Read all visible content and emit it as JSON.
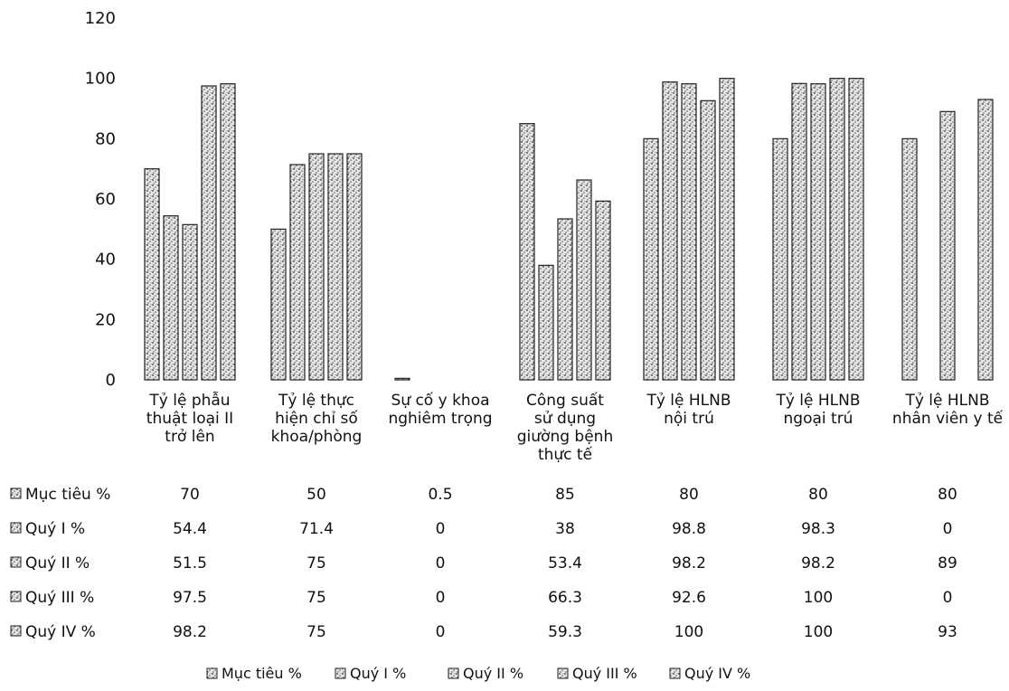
{
  "chart_data": {
    "type": "bar",
    "ylim": [
      0,
      120
    ],
    "yticks": [
      "0",
      "20",
      "40",
      "60",
      "80",
      "100",
      "120"
    ],
    "grid": false,
    "legend_position": "bottom",
    "categories": [
      [
        "Tỷ lệ phẫu",
        "thuật loại II",
        "trở lên"
      ],
      [
        "Tỷ lệ thực",
        "hiện chỉ số",
        "khoa/phòng"
      ],
      [
        "Sự cố y khoa",
        "nghiêm trọng"
      ],
      [
        "Công suất",
        "sử dụng",
        "giường bệnh",
        "thực tế"
      ],
      [
        "Tỷ lệ HLNB",
        "nội trú"
      ],
      [
        "Tỷ lệ HLNB",
        "ngoại trú"
      ],
      [
        "Tỷ lệ HLNB",
        "nhân viên y tế"
      ]
    ],
    "series": [
      {
        "name": "Mục tiêu %",
        "legend_label": "Mục tiêu %",
        "values": [
          70,
          50,
          0.5,
          85,
          80,
          80,
          80
        ],
        "labels": [
          "70",
          "50",
          "0.5",
          "85",
          "80",
          "80",
          "80"
        ]
      },
      {
        "name": "Quý I %",
        "legend_label": "Quý I %",
        "values": [
          54.4,
          71.4,
          0,
          38,
          98.8,
          98.3,
          0
        ],
        "labels": [
          "54.4",
          "71.4",
          "0",
          "38",
          "98.8",
          "98.3",
          "0"
        ]
      },
      {
        "name": "Quý II %",
        "legend_label": "Quý II %",
        "values": [
          51.5,
          75,
          0,
          53.4,
          98.2,
          98.2,
          89
        ],
        "labels": [
          "51.5",
          "75",
          "0",
          "53.4",
          "98.2",
          "98.2",
          "89"
        ]
      },
      {
        "name": "Quý III %",
        "legend_label": "Quý III %",
        "values": [
          97.5,
          75,
          0,
          66.3,
          92.6,
          100,
          0
        ],
        "labels": [
          "97.5",
          "75",
          "0",
          "66.3",
          "92.6",
          "100",
          "0"
        ]
      },
      {
        "name": "Quý IV %",
        "legend_label": "Quý IV %",
        "values": [
          98.2,
          75,
          0,
          59.3,
          100,
          100,
          93
        ],
        "labels": [
          "98.2",
          "75",
          "0",
          "59.3",
          "100",
          "100",
          "93"
        ]
      }
    ]
  }
}
